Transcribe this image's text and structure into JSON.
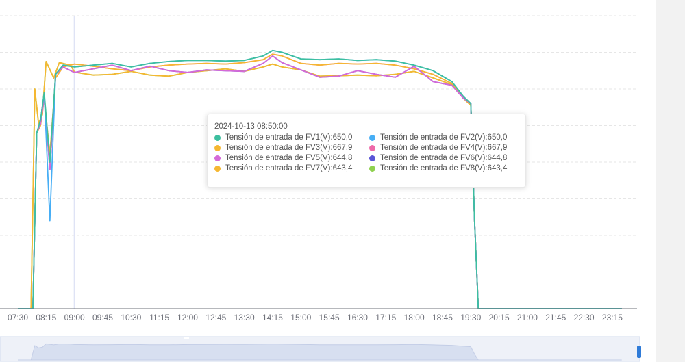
{
  "chart_data": {
    "type": "line",
    "xlabels": [
      "07:30",
      "08:15",
      "09:00",
      "09:45",
      "10:30",
      "11:15",
      "12:00",
      "12:45",
      "13:30",
      "14:15",
      "15:00",
      "15:45",
      "16:30",
      "17:15",
      "18:00",
      "18:45",
      "19:30",
      "20:15",
      "21:00",
      "21:45",
      "22:30",
      "23:15"
    ],
    "ylim": [
      0,
      800
    ],
    "grid": true,
    "series": [
      {
        "name": "Tensión de entrada de FV1(V)",
        "color": "#3dbf9f",
        "values": [
          [
            7.5,
            0
          ],
          [
            7.9,
            0
          ],
          [
            8.0,
            480
          ],
          [
            8.1,
            515
          ],
          [
            8.2,
            590
          ],
          [
            8.35,
            400
          ],
          [
            8.5,
            640
          ],
          [
            8.7,
            665
          ],
          [
            9.0,
            660
          ],
          [
            9.5,
            665
          ],
          [
            10.0,
            670
          ],
          [
            10.5,
            660
          ],
          [
            11.0,
            670
          ],
          [
            11.5,
            675
          ],
          [
            12.0,
            678
          ],
          [
            12.5,
            678
          ],
          [
            13.0,
            676
          ],
          [
            13.5,
            678
          ],
          [
            14.0,
            690
          ],
          [
            14.25,
            705
          ],
          [
            14.5,
            700
          ],
          [
            15.0,
            682
          ],
          [
            15.5,
            680
          ],
          [
            16.0,
            682
          ],
          [
            16.5,
            678
          ],
          [
            17.0,
            680
          ],
          [
            17.5,
            676
          ],
          [
            18.0,
            665
          ],
          [
            18.5,
            650
          ],
          [
            19.0,
            620
          ],
          [
            19.3,
            580
          ],
          [
            19.5,
            560
          ],
          [
            19.6,
            240
          ],
          [
            19.7,
            0
          ],
          [
            23.5,
            0
          ]
        ]
      },
      {
        "name": "Tensión de entrada de FV2(V)",
        "color": "#47aef5",
        "values": [
          [
            7.5,
            0
          ],
          [
            7.9,
            0
          ],
          [
            8.0,
            480
          ],
          [
            8.1,
            515
          ],
          [
            8.2,
            590
          ],
          [
            8.35,
            240
          ],
          [
            8.5,
            640
          ],
          [
            8.7,
            665
          ],
          [
            9.0,
            660
          ],
          [
            9.5,
            665
          ],
          [
            10.0,
            670
          ],
          [
            10.5,
            660
          ],
          [
            11.0,
            670
          ],
          [
            11.5,
            675
          ],
          [
            12.0,
            678
          ],
          [
            12.5,
            678
          ],
          [
            13.0,
            676
          ],
          [
            13.5,
            678
          ],
          [
            14.0,
            690
          ],
          [
            14.25,
            705
          ],
          [
            14.5,
            700
          ],
          [
            15.0,
            682
          ],
          [
            15.5,
            680
          ],
          [
            16.0,
            682
          ],
          [
            16.5,
            678
          ],
          [
            17.0,
            680
          ],
          [
            17.5,
            676
          ],
          [
            18.0,
            665
          ],
          [
            18.5,
            650
          ],
          [
            19.0,
            620
          ],
          [
            19.3,
            580
          ],
          [
            19.5,
            560
          ],
          [
            19.6,
            240
          ],
          [
            19.7,
            0
          ],
          [
            23.5,
            0
          ]
        ]
      },
      {
        "name": "Tensión de entrada de FV3(V)",
        "color": "#f5b731",
        "values": [
          [
            7.5,
            0
          ],
          [
            7.9,
            0
          ],
          [
            8.0,
            480
          ],
          [
            8.1,
            500
          ],
          [
            8.2,
            575
          ],
          [
            8.35,
            420
          ],
          [
            8.5,
            630
          ],
          [
            8.7,
            660
          ],
          [
            9.0,
            668
          ],
          [
            9.5,
            662
          ],
          [
            10.0,
            655
          ],
          [
            10.5,
            650
          ],
          [
            11.0,
            660
          ],
          [
            11.5,
            665
          ],
          [
            12.0,
            668
          ],
          [
            12.5,
            670
          ],
          [
            13.0,
            668
          ],
          [
            13.5,
            672
          ],
          [
            14.0,
            680
          ],
          [
            14.25,
            695
          ],
          [
            14.5,
            690
          ],
          [
            15.0,
            670
          ],
          [
            15.5,
            665
          ],
          [
            16.0,
            670
          ],
          [
            16.5,
            668
          ],
          [
            17.0,
            670
          ],
          [
            17.5,
            665
          ],
          [
            18.0,
            655
          ],
          [
            18.5,
            640
          ],
          [
            19.0,
            615
          ],
          [
            19.3,
            578
          ],
          [
            19.5,
            560
          ],
          [
            19.6,
            240
          ],
          [
            19.7,
            0
          ],
          [
            23.5,
            0
          ]
        ]
      },
      {
        "name": "Tensión de entrada de FV4(V)",
        "color": "#ee6aa9",
        "values": [
          [
            7.5,
            0
          ],
          [
            7.9,
            0
          ],
          [
            8.0,
            480
          ],
          [
            8.1,
            500
          ],
          [
            8.2,
            575
          ],
          [
            8.35,
            420
          ],
          [
            8.5,
            630
          ],
          [
            8.7,
            660
          ],
          [
            9.0,
            668
          ],
          [
            9.5,
            662
          ],
          [
            10.0,
            655
          ],
          [
            10.5,
            650
          ],
          [
            11.0,
            660
          ],
          [
            11.5,
            665
          ],
          [
            12.0,
            668
          ],
          [
            12.5,
            670
          ],
          [
            13.0,
            668
          ],
          [
            13.5,
            672
          ],
          [
            14.0,
            680
          ],
          [
            14.25,
            695
          ],
          [
            14.5,
            690
          ],
          [
            15.0,
            670
          ],
          [
            15.5,
            665
          ],
          [
            16.0,
            670
          ],
          [
            16.5,
            668
          ],
          [
            17.0,
            670
          ],
          [
            17.5,
            665
          ],
          [
            18.0,
            655
          ],
          [
            18.5,
            640
          ],
          [
            19.0,
            615
          ],
          [
            19.3,
            578
          ],
          [
            19.5,
            560
          ],
          [
            19.6,
            240
          ],
          [
            19.7,
            0
          ],
          [
            23.5,
            0
          ]
        ]
      },
      {
        "name": "Tensión de entrada de FV5(V)",
        "color": "#d56ad8",
        "values": [
          [
            7.5,
            0
          ],
          [
            7.9,
            0
          ],
          [
            8.0,
            480
          ],
          [
            8.1,
            505
          ],
          [
            8.2,
            580
          ],
          [
            8.35,
            380
          ],
          [
            8.5,
            640
          ],
          [
            8.7,
            660
          ],
          [
            9.0,
            645
          ],
          [
            9.5,
            655
          ],
          [
            10.0,
            665
          ],
          [
            10.5,
            650
          ],
          [
            11.0,
            662
          ],
          [
            11.5,
            650
          ],
          [
            12.0,
            645
          ],
          [
            12.5,
            652
          ],
          [
            13.0,
            650
          ],
          [
            13.5,
            648
          ],
          [
            14.0,
            670
          ],
          [
            14.25,
            690
          ],
          [
            14.5,
            672
          ],
          [
            15.0,
            652
          ],
          [
            15.5,
            632
          ],
          [
            16.0,
            635
          ],
          [
            16.5,
            650
          ],
          [
            17.0,
            640
          ],
          [
            17.5,
            632
          ],
          [
            18.0,
            662
          ],
          [
            18.5,
            620
          ],
          [
            19.0,
            610
          ],
          [
            19.3,
            575
          ],
          [
            19.5,
            560
          ],
          [
            19.6,
            240
          ],
          [
            19.7,
            0
          ],
          [
            23.5,
            0
          ]
        ]
      },
      {
        "name": "Tensión de entrada de FV6(V)",
        "color": "#5a55d6",
        "values": [
          [
            7.5,
            0
          ],
          [
            7.9,
            0
          ],
          [
            8.0,
            480
          ],
          [
            8.1,
            505
          ],
          [
            8.2,
            580
          ],
          [
            8.35,
            380
          ],
          [
            8.5,
            640
          ],
          [
            8.7,
            660
          ],
          [
            9.0,
            645
          ],
          [
            9.5,
            655
          ],
          [
            10.0,
            665
          ],
          [
            10.5,
            650
          ],
          [
            11.0,
            662
          ],
          [
            11.5,
            650
          ],
          [
            12.0,
            645
          ],
          [
            12.5,
            652
          ],
          [
            13.0,
            650
          ],
          [
            13.5,
            648
          ],
          [
            14.0,
            670
          ],
          [
            14.25,
            690
          ],
          [
            14.5,
            672
          ],
          [
            15.0,
            652
          ],
          [
            15.5,
            632
          ],
          [
            16.0,
            635
          ],
          [
            16.5,
            650
          ],
          [
            17.0,
            640
          ],
          [
            17.5,
            632
          ],
          [
            18.0,
            662
          ],
          [
            18.5,
            620
          ],
          [
            19.0,
            610
          ],
          [
            19.3,
            575
          ],
          [
            19.5,
            560
          ],
          [
            19.6,
            240
          ],
          [
            19.7,
            0
          ],
          [
            23.5,
            0
          ]
        ]
      },
      {
        "name": "Tensión de entrada de FV7(V)",
        "color": "#f5b731",
        "values": [
          [
            7.5,
            0
          ],
          [
            7.85,
            0
          ],
          [
            7.95,
            600
          ],
          [
            8.05,
            505
          ],
          [
            8.15,
            530
          ],
          [
            8.25,
            675
          ],
          [
            8.45,
            630
          ],
          [
            8.6,
            672
          ],
          [
            8.9,
            665
          ],
          [
            9.0,
            646
          ],
          [
            9.5,
            638
          ],
          [
            10.0,
            640
          ],
          [
            10.5,
            648
          ],
          [
            11.0,
            638
          ],
          [
            11.5,
            635
          ],
          [
            12.0,
            645
          ],
          [
            12.5,
            650
          ],
          [
            13.0,
            655
          ],
          [
            13.5,
            648
          ],
          [
            14.0,
            660
          ],
          [
            14.25,
            668
          ],
          [
            14.5,
            660
          ],
          [
            15.0,
            652
          ],
          [
            15.5,
            635
          ],
          [
            16.0,
            636
          ],
          [
            16.5,
            638
          ],
          [
            17.0,
            636
          ],
          [
            17.5,
            640
          ],
          [
            18.0,
            648
          ],
          [
            18.5,
            630
          ],
          [
            19.0,
            612
          ],
          [
            19.3,
            575
          ],
          [
            19.5,
            555
          ],
          [
            19.6,
            240
          ],
          [
            19.7,
            0
          ],
          [
            23.5,
            0
          ]
        ]
      },
      {
        "name": "Tensión de entrada de FV8(V)",
        "color": "#8fd14f",
        "values": [
          [
            7.5,
            0
          ],
          [
            7.85,
            0
          ],
          [
            7.95,
            600
          ],
          [
            8.05,
            505
          ],
          [
            8.15,
            530
          ],
          [
            8.25,
            675
          ],
          [
            8.45,
            630
          ],
          [
            8.6,
            672
          ],
          [
            8.9,
            665
          ],
          [
            9.0,
            646
          ],
          [
            9.5,
            638
          ],
          [
            10.0,
            640
          ],
          [
            10.5,
            648
          ],
          [
            11.0,
            638
          ],
          [
            11.5,
            635
          ],
          [
            12.0,
            645
          ],
          [
            12.5,
            650
          ],
          [
            13.0,
            655
          ],
          [
            13.5,
            648
          ],
          [
            14.0,
            660
          ],
          [
            14.25,
            668
          ],
          [
            14.5,
            660
          ],
          [
            15.0,
            652
          ],
          [
            15.5,
            635
          ],
          [
            16.0,
            636
          ],
          [
            16.5,
            638
          ],
          [
            17.0,
            636
          ],
          [
            17.5,
            640
          ],
          [
            18.0,
            648
          ],
          [
            18.5,
            630
          ],
          [
            19.0,
            612
          ],
          [
            19.3,
            575
          ],
          [
            19.5,
            555
          ],
          [
            19.6,
            240
          ],
          [
            19.7,
            0
          ],
          [
            23.5,
            0
          ]
        ]
      }
    ],
    "cursor_x": 9.0,
    "tooltip": {
      "title": "2024-10-13 08:50:00",
      "items": [
        {
          "label": "Tensión de entrada de FV1(V):650,0",
          "color": "#3dbf9f"
        },
        {
          "label": "Tensión de entrada de FV2(V):650,0",
          "color": "#47aef5"
        },
        {
          "label": "Tensión de entrada de FV3(V):667,9",
          "color": "#f5b731"
        },
        {
          "label": "Tensión de entrada de FV4(V):667,9",
          "color": "#ee6aa9"
        },
        {
          "label": "Tensión de entrada de FV5(V):644,8",
          "color": "#d56ad8"
        },
        {
          "label": "Tensión de entrada de FV6(V):644,8",
          "color": "#5a55d6"
        },
        {
          "label": "Tensión de entrada de FV7(V):643,4",
          "color": "#f5b731"
        },
        {
          "label": "Tensión de entrada de FV8(V):643,4",
          "color": "#8fd14f"
        }
      ]
    }
  }
}
